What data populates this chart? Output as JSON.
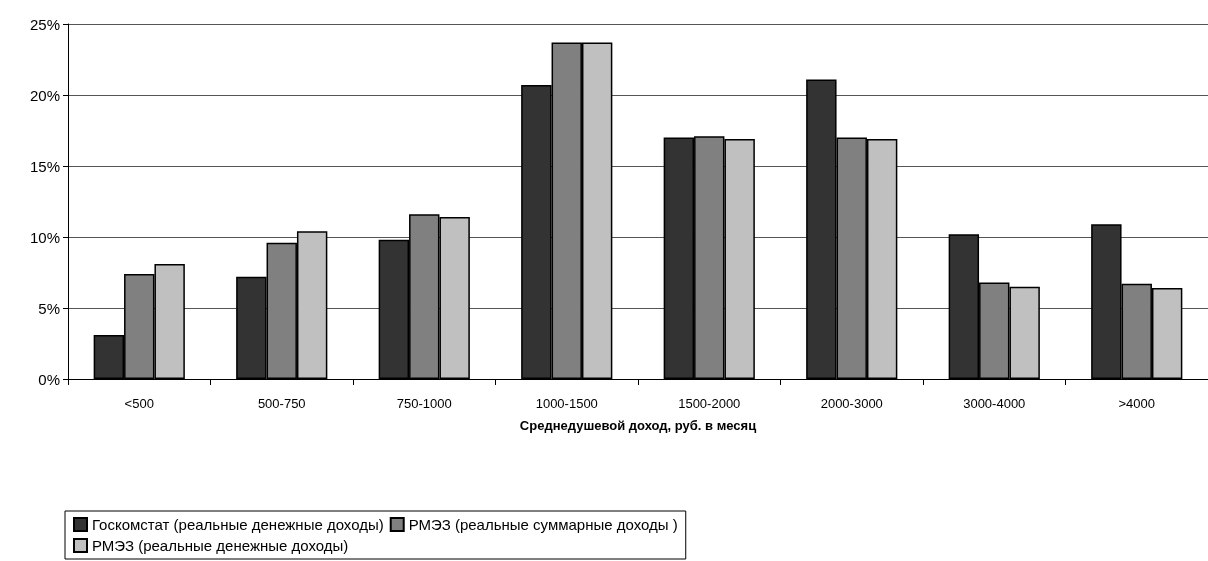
{
  "chart_data": {
    "type": "bar",
    "xlabel": "Среднедушевой доход, руб. в месяц",
    "categories": [
      "<500",
      "500-750",
      "750-1000",
      "1000-1500",
      "1500-2000",
      "2000-3000",
      "3000-4000",
      ">4000"
    ],
    "series": [
      {
        "name": "Госкомстат (реальные денежные доходы)",
        "color": "#333333",
        "values": [
          3.1,
          7.2,
          9.8,
          20.7,
          17.0,
          21.1,
          10.2,
          10.9
        ]
      },
      {
        "name": "РМЭЗ (реальные суммарные доходы )",
        "color": "#808080",
        "values": [
          7.4,
          9.6,
          11.6,
          23.7,
          17.1,
          17.0,
          6.8,
          6.7
        ]
      },
      {
        "name": "РМЭЗ (реальные денежные доходы)",
        "color": "#c0c0c0",
        "values": [
          8.1,
          10.4,
          11.4,
          23.7,
          16.9,
          16.9,
          6.5,
          6.4
        ]
      }
    ],
    "ylim": [
      0,
      25
    ],
    "yticks": [
      {
        "value": 0,
        "label": "0%"
      },
      {
        "value": 5,
        "label": "5%"
      },
      {
        "value": 10,
        "label": "10%"
      },
      {
        "value": 15,
        "label": "15%"
      },
      {
        "value": 20,
        "label": "20%"
      },
      {
        "value": 25,
        "label": "25%"
      }
    ],
    "grid": "y",
    "legend": "bottom"
  }
}
